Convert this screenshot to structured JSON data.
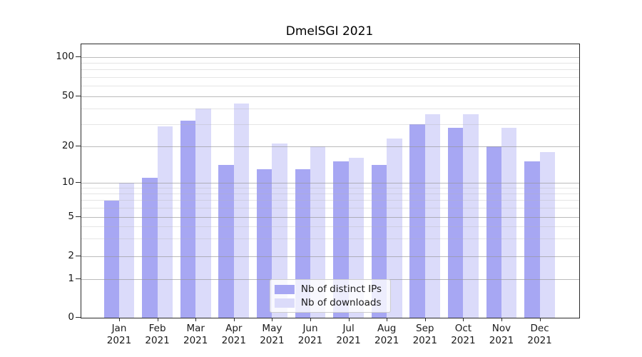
{
  "title": "DmelSGI 2021",
  "colors": {
    "distinct_ips": "#a7a7f3",
    "downloads": "#dbdbfa",
    "grid_major": "rgba(150,150,150,0.65)",
    "grid_minor": "rgba(180,180,180,0.35)",
    "axis": "#2b2b2b"
  },
  "legend": {
    "position": "lower center",
    "items": [
      {
        "label": "Nb of distinct IPs",
        "series": "distinct_ips"
      },
      {
        "label": "Nb of downloads",
        "series": "downloads"
      }
    ]
  },
  "chart_data": {
    "type": "bar",
    "title": "DmelSGI 2021",
    "xlabel": "",
    "ylabel": "",
    "year": "2021",
    "categories": [
      "Jan",
      "Feb",
      "Mar",
      "Apr",
      "May",
      "Jun",
      "Jul",
      "Aug",
      "Sep",
      "Oct",
      "Nov",
      "Dec"
    ],
    "series": [
      {
        "name": "Nb of distinct IPs",
        "color_key": "distinct_ips",
        "values": [
          7,
          11,
          32,
          14,
          13,
          13,
          15,
          14,
          30,
          28,
          20,
          15
        ]
      },
      {
        "name": "Nb of downloads",
        "color_key": "downloads",
        "values": [
          10,
          29,
          40,
          44,
          21,
          20,
          16,
          23,
          36,
          36,
          28,
          18
        ]
      }
    ],
    "yscale": "symlog-like (linear 0-1, log above)",
    "y_major_ticks": [
      0,
      1,
      2,
      5,
      10,
      20,
      50,
      100
    ],
    "y_tick_labels": [
      "0",
      "1",
      "2",
      "5",
      "10",
      "20",
      "50",
      "100"
    ],
    "y_minor_gridlines": [
      3,
      4,
      6,
      7,
      8,
      9,
      30,
      40,
      60,
      70,
      80,
      90
    ],
    "grid": "on",
    "layout": {
      "y_anchors": [
        [
          0,
          0
        ],
        [
          1,
          0.141
        ],
        [
          2,
          0.2245
        ],
        [
          5,
          0.368
        ],
        [
          10,
          0.4935
        ],
        [
          20,
          0.6266
        ],
        [
          50,
          0.8094
        ],
        [
          100,
          0.953
        ]
      ],
      "x_first_center_pct": 7.593,
      "x_step_pct": 7.679,
      "bar_width_pct": 3.066
    }
  }
}
